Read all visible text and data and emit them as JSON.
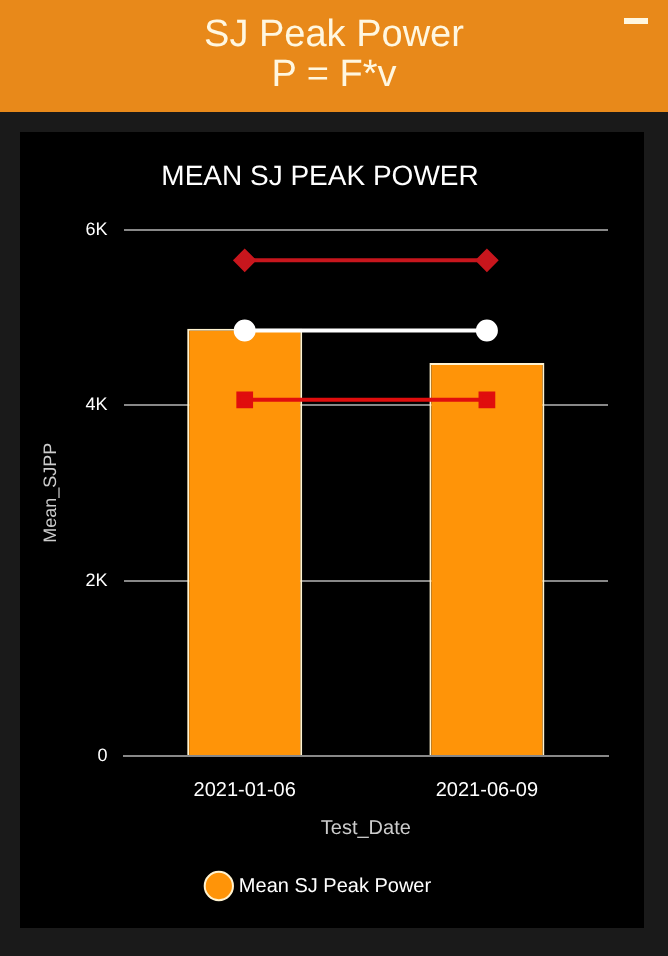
{
  "chart_data": {
    "type": "bar",
    "title": "MEAN SJ PEAK POWER",
    "xlabel": "Test_Date",
    "ylabel": "Mean_SJPP",
    "annotations": [
      "SJ Peak Power",
      "P = F*v"
    ],
    "categories": [
      "2021-01-06",
      "2021-06-09"
    ],
    "series": [
      {
        "name": "Mean SJ Peak Power",
        "color": "#ff9408",
        "values": [
          4870,
          4480
        ]
      },
      {
        "type": "line",
        "color": "#ffffff",
        "marker": "circle",
        "values": [
          4850,
          4850
        ]
      },
      {
        "type": "line",
        "color": "#c8161d",
        "marker": "diamond",
        "values": [
          5650,
          5650
        ]
      },
      {
        "type": "line",
        "color": "#e00d0d",
        "marker": "square",
        "values": [
          4060,
          4060
        ]
      }
    ],
    "ylim": [
      0,
      6000
    ],
    "yticks": [
      {
        "value": 0,
        "label": "0"
      },
      {
        "value": 2000,
        "label": "2K"
      },
      {
        "value": 4000,
        "label": "4K"
      },
      {
        "value": 6000,
        "label": "6K"
      }
    ],
    "grid": "y",
    "legend": "bottom"
  }
}
